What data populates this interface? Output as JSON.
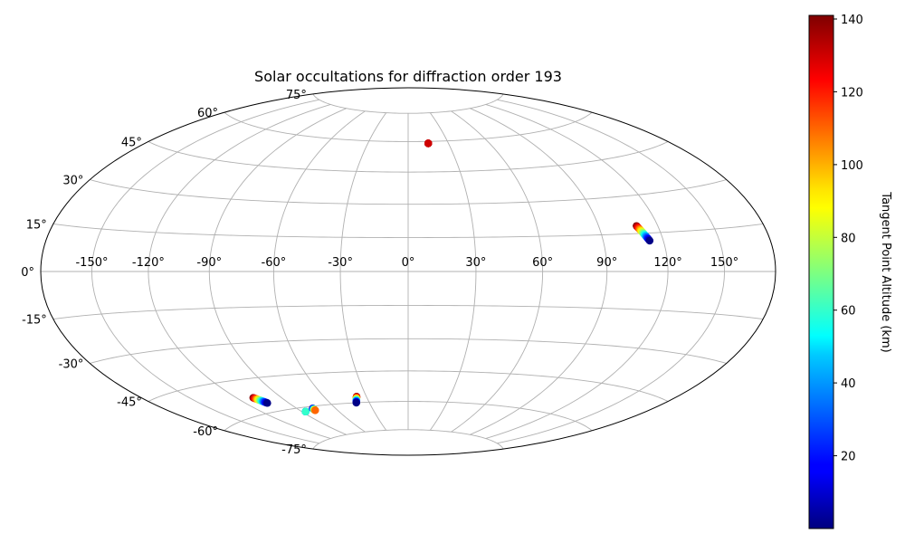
{
  "chart_data": {
    "type": "scatter",
    "projection": "hammer",
    "title": "Solar occultations for diffraction order 193",
    "lon_ticks": [
      "-150°",
      "-120°",
      "-90°",
      "-60°",
      "-30°",
      "0°",
      "30°",
      "60°",
      "90°",
      "120°",
      "150°"
    ],
    "lat_ticks": [
      "-75°",
      "-60°",
      "-45°",
      "-30°",
      "-15°",
      "0°",
      "15°",
      "30°",
      "45°",
      "60°",
      "75°"
    ],
    "grid": true,
    "colorbar": {
      "label": "Tangent Point Altitude (km)",
      "colormap": "jet",
      "range": [
        0,
        141
      ],
      "ticks": [
        "20",
        "40",
        "60",
        "80",
        "100",
        "120",
        "140"
      ]
    },
    "colors": {
      "low": "#00007f",
      "high": "#7f0000"
    },
    "occultations": [
      {
        "lon_start": 15,
        "lat_start": 59,
        "lon_end": 15,
        "lat_end": 59,
        "alt_start": 141,
        "alt_end": 130
      },
      {
        "lon_start": 109,
        "lat_start": 18,
        "lon_end": 113,
        "lat_end": 12,
        "alt_start": 141,
        "alt_end": 1
      },
      {
        "lon_start": -109,
        "lat_start": -53,
        "lon_end": -105,
        "lat_end": -56,
        "alt_start": 141,
        "alt_end": 1
      },
      {
        "lon_start": -87,
        "lat_start": -62,
        "lon_end": -87,
        "lat_end": -62,
        "alt_start": 1,
        "alt_end": 60
      },
      {
        "lon_start": -78,
        "lat_start": -61,
        "lon_end": -78,
        "lat_end": -62,
        "alt_start": 1,
        "alt_end": 110
      },
      {
        "lon_start": -37,
        "lat_start": -57,
        "lon_end": -40,
        "lat_end": -60,
        "alt_start": 141,
        "alt_end": 1
      }
    ]
  }
}
